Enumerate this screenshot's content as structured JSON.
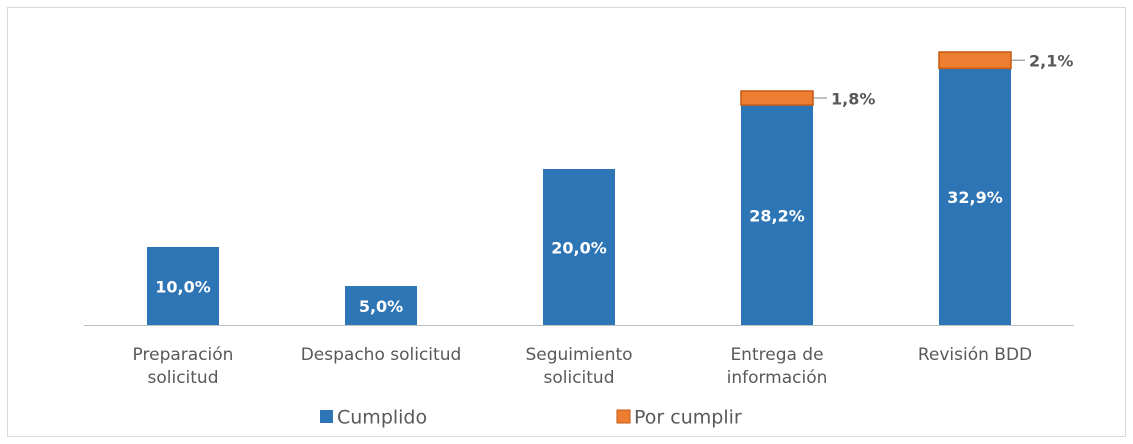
{
  "chart_data": {
    "type": "stacked_bar",
    "categories": [
      "Preparación solicitud",
      "Despacho solicitud",
      "Seguimiento solicitud",
      "Entrega de información",
      "Revisión BDD"
    ],
    "series": [
      {
        "name": "Cumplido",
        "color": "#2e75b6",
        "values": [
          10,
          5,
          20,
          28.2,
          32.9
        ],
        "value_labels": [
          "10,0%",
          "5,0%",
          "20,0%",
          "28,2%",
          "32,9%"
        ]
      },
      {
        "name": "Por cumplir",
        "color": "#ed7d31",
        "values": [
          null,
          null,
          null,
          1.8,
          2.1
        ],
        "value_labels": [
          null,
          null,
          null,
          "1,8%",
          "2,1%"
        ]
      }
    ],
    "legend": "bottom"
  }
}
